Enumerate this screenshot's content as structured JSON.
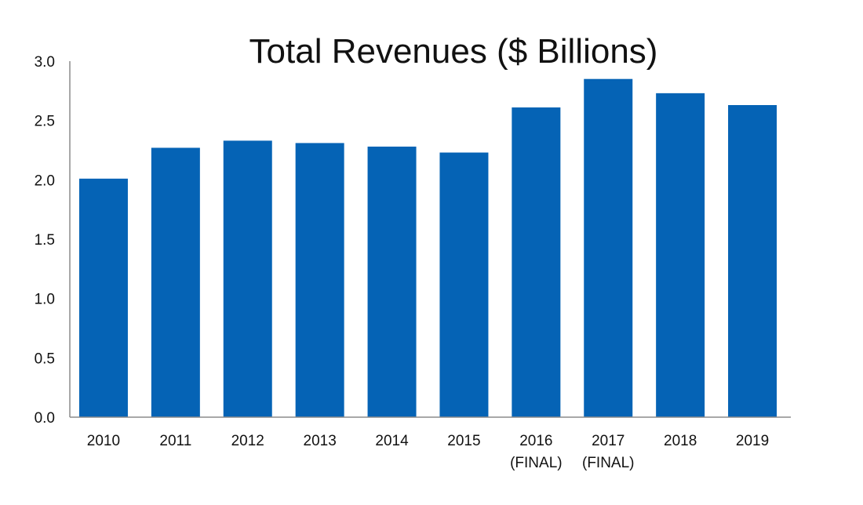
{
  "chart_data": {
    "type": "bar",
    "title": "Total Revenues ($ Billions)",
    "xlabel": "",
    "ylabel": "",
    "categories": [
      {
        "label": "2010",
        "sub": ""
      },
      {
        "label": "2011",
        "sub": ""
      },
      {
        "label": "2012",
        "sub": ""
      },
      {
        "label": "2013",
        "sub": ""
      },
      {
        "label": "2014",
        "sub": ""
      },
      {
        "label": "2015",
        "sub": ""
      },
      {
        "label": "2016",
        "sub": "(FINAL)"
      },
      {
        "label": "2017",
        "sub": "(FINAL)"
      },
      {
        "label": "2018",
        "sub": ""
      },
      {
        "label": "2019",
        "sub": ""
      }
    ],
    "values": [
      2.01,
      2.27,
      2.33,
      2.31,
      2.28,
      2.23,
      2.61,
      2.85,
      2.73,
      2.63
    ],
    "ylim": [
      0,
      3.0
    ],
    "yticks": [
      "0.0",
      "0.5",
      "1.0",
      "1.5",
      "2.0",
      "2.5",
      "3.0"
    ],
    "bar_color": "#0563b5",
    "grid": false,
    "legend": "none"
  }
}
